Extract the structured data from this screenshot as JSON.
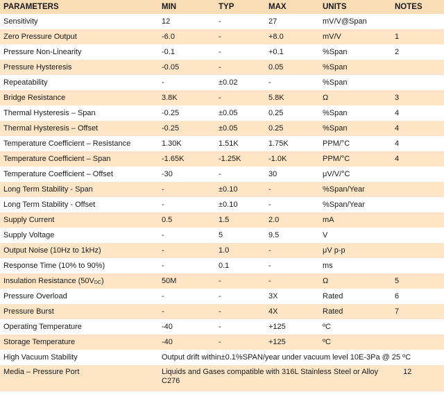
{
  "headers": [
    "PARAMETERS",
    "MIN",
    "TYP",
    "MAX",
    "UNITS",
    "NOTES"
  ],
  "rows": [
    {
      "param": "Sensitivity",
      "min": "12",
      "typ": "-",
      "max": "27",
      "units": "mV/V@Span",
      "notes": ""
    },
    {
      "param": "Zero Pressure Output",
      "min": "-6.0",
      "typ": "-",
      "max": "+8.0",
      "units": "mV/V",
      "notes": "1"
    },
    {
      "param": "Pressure Non-Linearity",
      "min": "-0.1",
      "typ": "-",
      "max": "+0.1",
      "units": "%Span",
      "notes": "2"
    },
    {
      "param": "Pressure Hysteresis",
      "min": "-0.05",
      "typ": "-",
      "max": "0.05",
      "units": "%Span",
      "notes": ""
    },
    {
      "param": "Repeatability",
      "min": "-",
      "typ": "±0.02",
      "max": "-",
      "units": "%Span",
      "notes": ""
    },
    {
      "param": "Bridge Resistance",
      "min": "3.8K",
      "typ": "-",
      "max": "5.8K",
      "units": "Ω",
      "notes": "3"
    },
    {
      "param": "Thermal Hysteresis – Span",
      "min": "-0.25",
      "typ": "±0.05",
      "max": "0.25",
      "units": "%Span",
      "notes": "4"
    },
    {
      "param": "Thermal Hysteresis – Offset",
      "min": "-0.25",
      "typ": "±0.05",
      "max": "0.25",
      "units": "%Span",
      "notes": "4"
    },
    {
      "param": "Temperature Coefficient – Resistance",
      "min": "1.30K",
      "typ": "1.51K",
      "max": "1.75K",
      "units": "PPM/°C",
      "notes": "4"
    },
    {
      "param": "Temperature Coefficient – Span",
      "min": "-1.65K",
      "typ": "-1.25K",
      "max": "-1.0K",
      "units": "PPM/°C",
      "notes": "4"
    },
    {
      "param": "Temperature Coefficient – Offset",
      "min": "-30",
      "typ": "-",
      "max": "30",
      "units": "μV/V/°C",
      "notes": ""
    },
    {
      "param": "Long Term Stability - Span",
      "min": "-",
      "typ": "±0.10",
      "max": "-",
      "units": "%Span/Year",
      "notes": ""
    },
    {
      "param": "Long Term Stability - Offset",
      "min": "-",
      "typ": "±0.10",
      "max": "-",
      "units": "%Span/Year",
      "notes": ""
    },
    {
      "param": "Supply Current",
      "min": "0.5",
      "typ": "1.5",
      "max": "2.0",
      "units": "mA",
      "notes": ""
    },
    {
      "param": "Supply Voltage",
      "min": "-",
      "typ": "5",
      "max": "9.5",
      "units": "V",
      "notes": ""
    },
    {
      "param": "Output Noise (10Hz to 1kHz)",
      "min": "-",
      "typ": "1.0",
      "max": "-",
      "units": "μV p-p",
      "notes": ""
    },
    {
      "param": "Response Time (10% to 90%)",
      "min": "-",
      "typ": "0.1",
      "max": "-",
      "units": "ms",
      "notes": ""
    },
    {
      "param": "Insulation Resistance (50V",
      "param_sub": "DC",
      "param_tail": ")",
      "min": "50M",
      "typ": "-",
      "max": "-",
      "units": "Ω",
      "notes": "5"
    },
    {
      "param": "Pressure Overload",
      "min": "-",
      "typ": "-",
      "max": "3X",
      "units": "Rated",
      "notes": "6"
    },
    {
      "param": "Pressure Burst",
      "min": "-",
      "typ": "-",
      "max": "4X",
      "units": "Rated",
      "notes": "7"
    },
    {
      "param": "Operating Temperature",
      "min": "-40",
      "typ": "-",
      "max": "+125",
      "units": "ºC",
      "notes": ""
    },
    {
      "param": "Storage Temperature",
      "min": "-40",
      "typ": "-",
      "max": "+125",
      "units": "ºC",
      "notes": ""
    }
  ],
  "vacuum": {
    "param": "High Vacuum Stability",
    "text": "Output drift within±0.1%SPAN/year under vacuum level 10E-3Pa @ 25 ºC"
  },
  "media": {
    "param": "Media – Pressure Port",
    "text": "Liquids and Gases compatible with 316L Stainless Steel or Alloy C276",
    "notes": "12"
  },
  "colors": {
    "header": "#f9ddb5",
    "shade": "#fde5c6",
    "text": "#1a1a1a"
  }
}
